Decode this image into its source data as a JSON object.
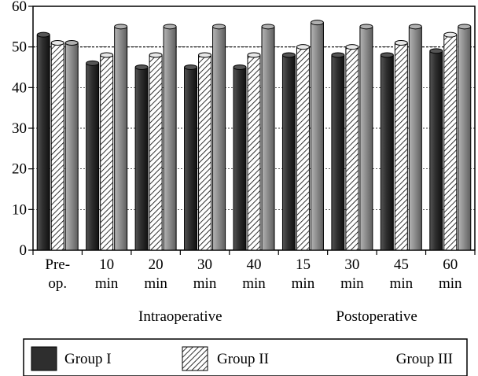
{
  "chart_data": {
    "type": "bar",
    "title": "",
    "xlabel": "",
    "ylabel": "",
    "ylim": [
      0,
      60
    ],
    "yticks": [
      0,
      10,
      20,
      30,
      40,
      50,
      60
    ],
    "grid": "horizontal dashed",
    "reference_line": 50,
    "legend_position": "bottom",
    "categories": [
      [
        "Pre-",
        "op."
      ],
      [
        "10",
        "min"
      ],
      [
        "20",
        "min"
      ],
      [
        "30",
        "min"
      ],
      [
        "40",
        "min"
      ],
      [
        "15",
        "min"
      ],
      [
        "30",
        "min"
      ],
      [
        "45",
        "min"
      ],
      [
        "60",
        "min"
      ]
    ],
    "category_groups": [
      {
        "label": "Intraoperative",
        "from": 1,
        "to": 4
      },
      {
        "label": "Postoperative",
        "from": 5,
        "to": 8
      }
    ],
    "series": [
      {
        "name": "Group I",
        "color": "#2b2b2b",
        "pattern": "solid-dark",
        "values": [
          53,
          46,
          45,
          45,
          45,
          48,
          48,
          48,
          49
        ]
      },
      {
        "name": "Group II",
        "color": "#ffffff",
        "pattern": "diagonal-hatch",
        "values": [
          51,
          48,
          48,
          48,
          48,
          50,
          50,
          51,
          53
        ]
      },
      {
        "name": "Group III",
        "color": "#8a8a8a",
        "pattern": "solid-gray",
        "values": [
          51,
          55,
          55,
          55,
          55,
          56,
          55,
          55,
          55
        ]
      }
    ]
  }
}
